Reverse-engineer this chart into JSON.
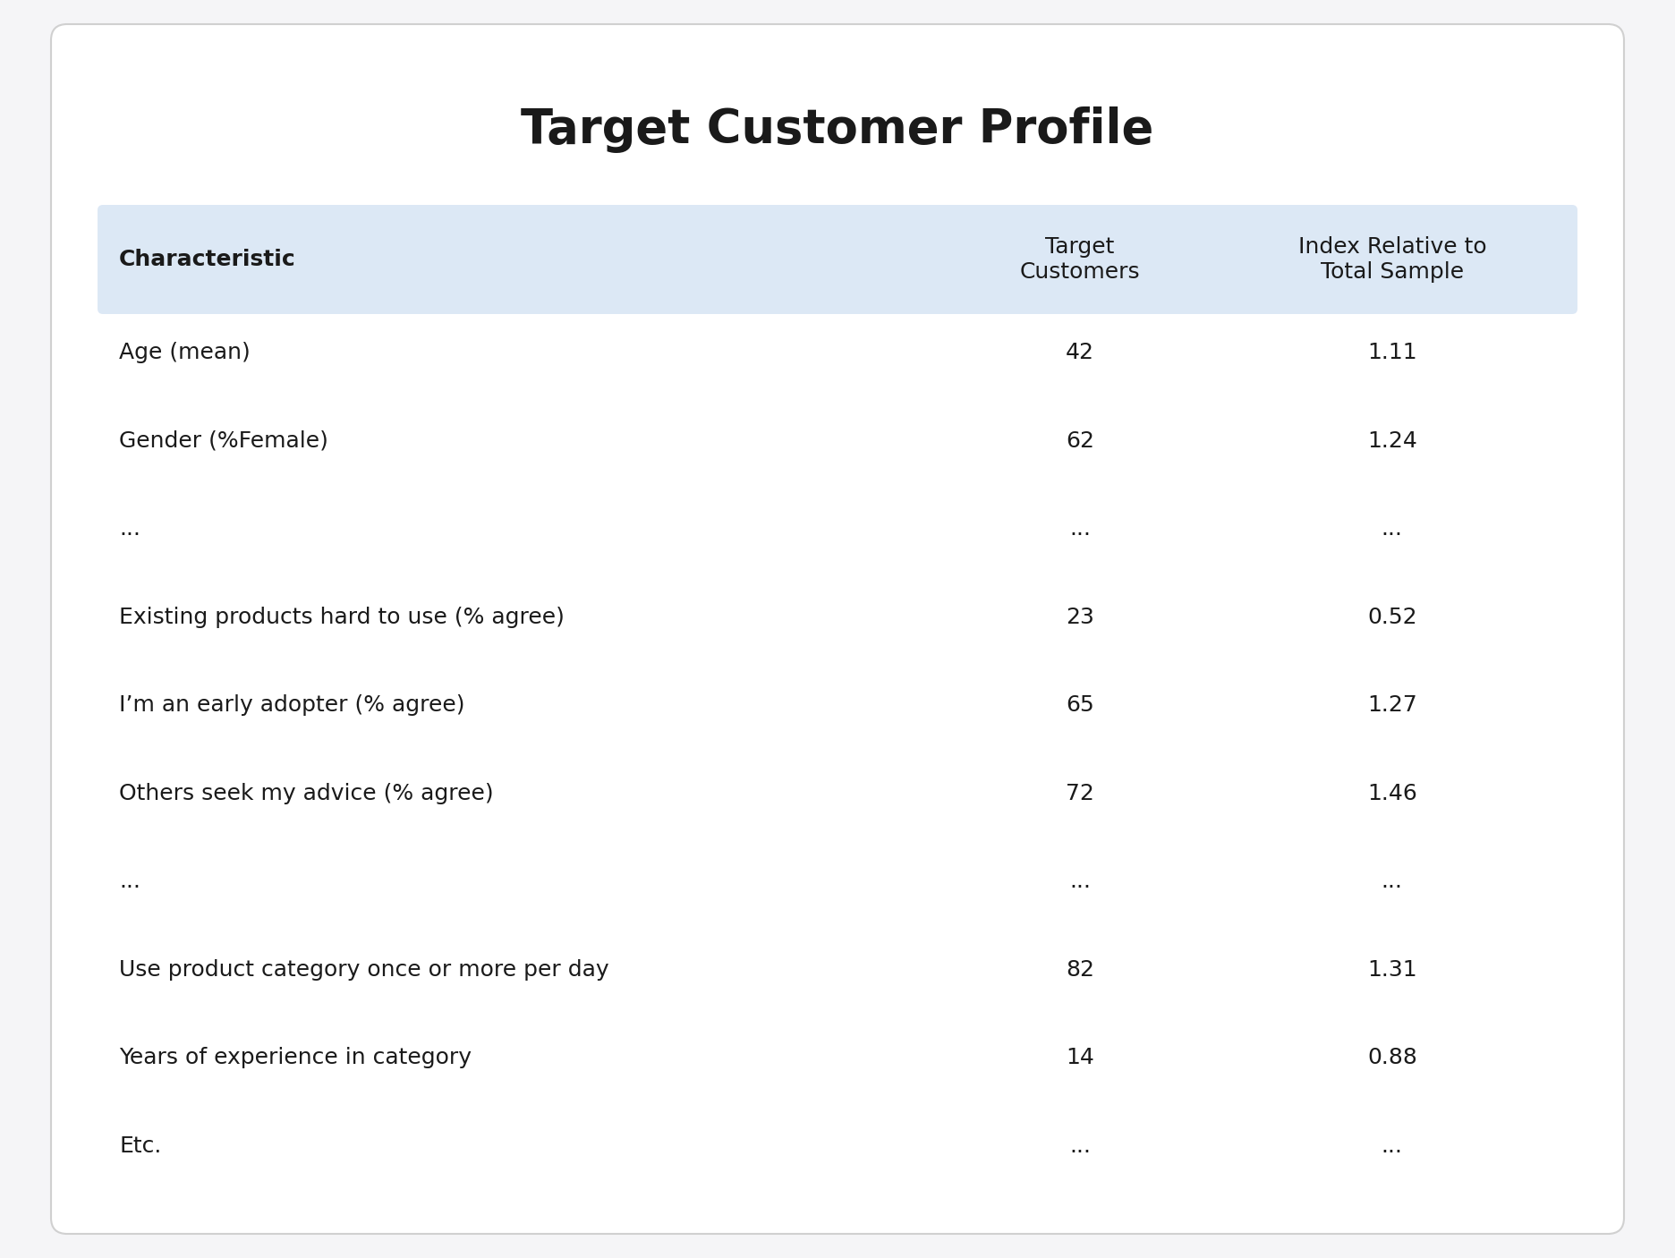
{
  "title": "Target Customer Profile",
  "title_fontsize": 38,
  "title_fontweight": "bold",
  "background_color": "#f5f5f7",
  "outer_card_color": "#ffffff",
  "outer_card_edge": "#d0d0d0",
  "header_bg_color": "#dce8f5",
  "header_text_color": "#1a1a1a",
  "row_text_color": "#1a1a1a",
  "col_headers": [
    "Characteristic",
    "Target\nCustomers",
    "Index Relative to\nTotal Sample"
  ],
  "col_header_fontsize": 18,
  "col_header_fontweight": "normal",
  "rows": [
    [
      "Age (mean)",
      "42",
      "1.11"
    ],
    [
      "Gender (%Female)",
      "62",
      "1.24"
    ],
    [
      "...",
      "...",
      "..."
    ],
    [
      "Existing products hard to use (% agree)",
      "23",
      "0.52"
    ],
    [
      "I’m an early adopter (% agree)",
      "65",
      "1.27"
    ],
    [
      "Others seek my advice (% agree)",
      "72",
      "1.46"
    ],
    [
      "...",
      "...",
      "..."
    ],
    [
      "Use product category once or more per day",
      "82",
      "1.31"
    ],
    [
      "Years of experience in category",
      "14",
      "0.88"
    ],
    [
      "Etc.",
      "...",
      "..."
    ]
  ],
  "row_fontsize": 18
}
